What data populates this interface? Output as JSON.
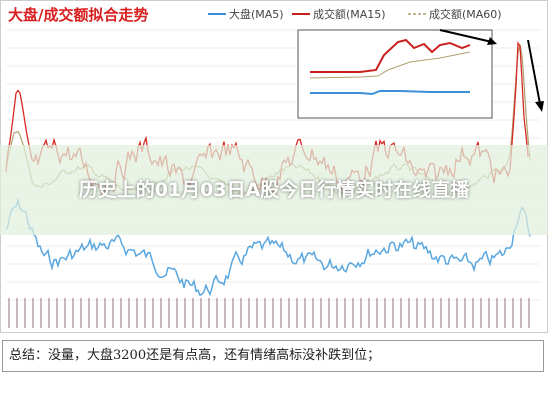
{
  "image": {
    "title": "大盘/成交额拟合走势",
    "legend": [
      "大盘(MA5)",
      "成交额(MA15)",
      "成交额(MA60)"
    ]
  },
  "overlay": {
    "headline": "历史上的01月03日A股今日行情实时在线直播"
  },
  "summary": {
    "text": "总结：没量，大盘3200还是有点高，还有情绪高标没补跌到位；"
  }
}
